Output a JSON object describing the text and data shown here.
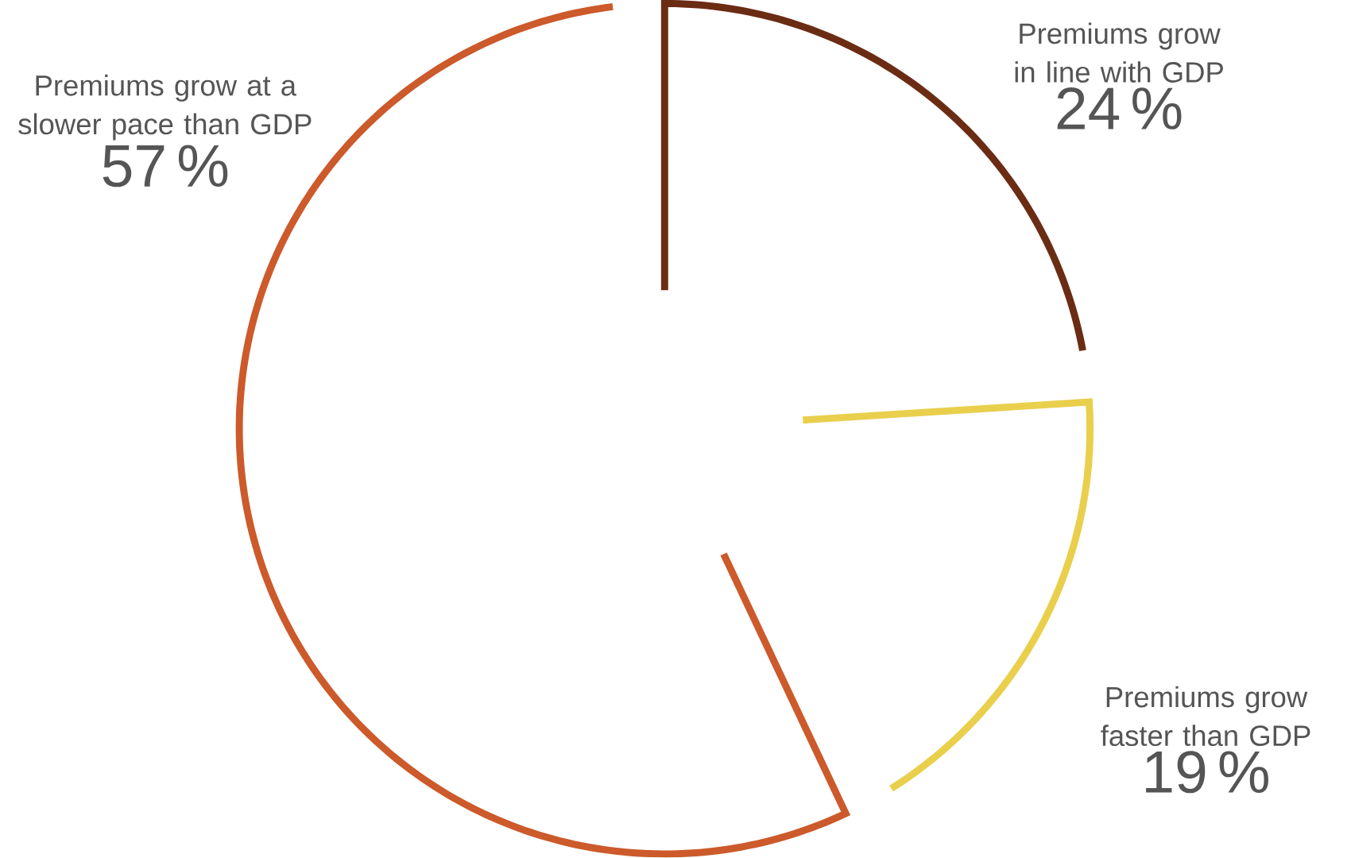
{
  "chart_data": {
    "type": "donut",
    "categories": [
      "Premiums grow in line with GDP",
      "Premiums grow faster than GDP",
      "Premiums grow at a slower pace than GDP"
    ],
    "values": [
      24,
      19,
      57
    ],
    "value_labels": [
      "24 %",
      "19 %",
      "57 %"
    ],
    "colors": [
      "#6b2c14",
      "#e9cf4c",
      "#cc5a2b"
    ]
  }
}
